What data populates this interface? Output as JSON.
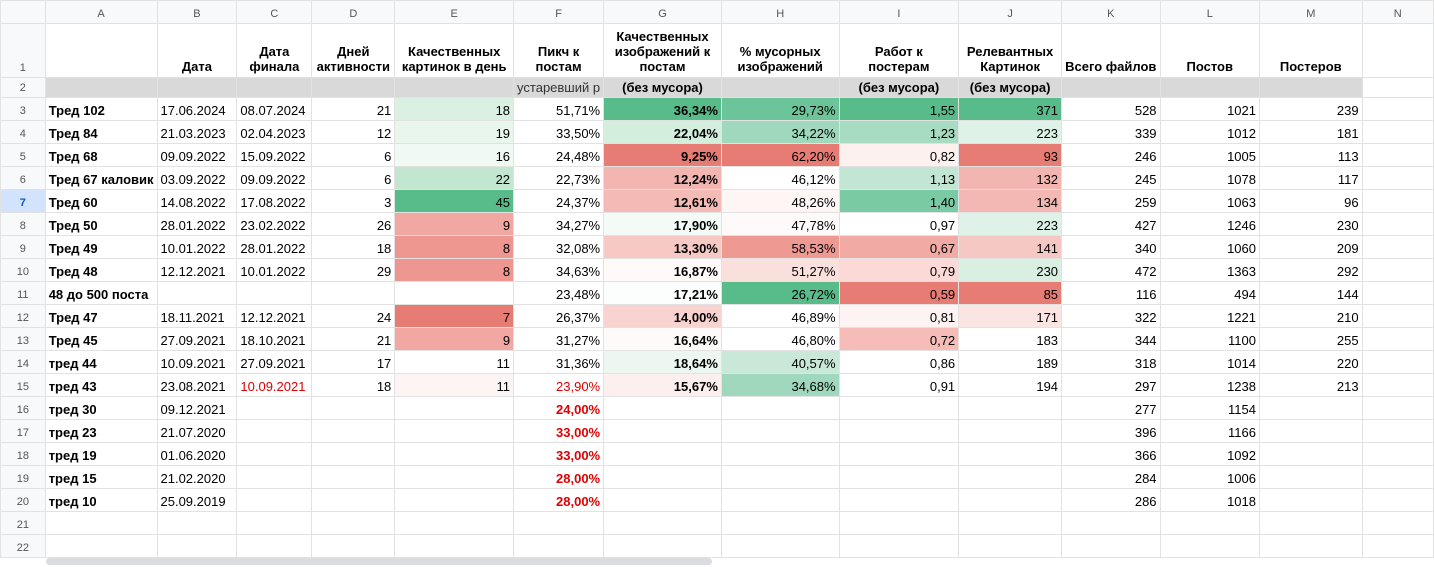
{
  "columns": [
    "A",
    "B",
    "C",
    "D",
    "E",
    "F",
    "G",
    "H",
    "I",
    "J",
    "K",
    "L",
    "M",
    "N"
  ],
  "header": {
    "row_num": "1",
    "B": "Дата",
    "C": "Дата финала",
    "D": "Дней активности",
    "E": "Качественных картинок в день",
    "F": "Пикч к постам",
    "G": "Качественных изображений к постам",
    "H": "% мусорных изображений",
    "I": "Работ к постерам",
    "J": "Релевантных Картинок",
    "K": "Всего файлов",
    "L": "Постов",
    "M": "Постеров"
  },
  "header2": {
    "row_num": "2",
    "F": "устаревший р",
    "G": "(без мусора)",
    "I": "(без мусора)",
    "J": "(без мусора)"
  },
  "rows": [
    {
      "n": "3",
      "a": "Тред 102",
      "b": "17.06.2024",
      "c": "08.07.2024",
      "d": "21",
      "e": "18",
      "f": "51,71%",
      "g": "36,34%",
      "h": "29,73%",
      "i": "1,55",
      "j": "371",
      "k": "528",
      "l": "1021",
      "m": "239"
    },
    {
      "n": "4",
      "a": "Тред 84",
      "b": "21.03.2023",
      "c": "02.04.2023",
      "d": "12",
      "e": "19",
      "f": "33,50%",
      "g": "22,04%",
      "h": "34,22%",
      "i": "1,23",
      "j": "223",
      "k": "339",
      "l": "1012",
      "m": "181"
    },
    {
      "n": "5",
      "a": "Тред 68",
      "b": "09.09.2022",
      "c": "15.09.2022",
      "d": "6",
      "e": "16",
      "f": "24,48%",
      "g": "9,25%",
      "h": "62,20%",
      "i": "0,82",
      "j": "93",
      "k": "246",
      "l": "1005",
      "m": "113"
    },
    {
      "n": "6",
      "a": "Тред 67 каловик",
      "b": "03.09.2022",
      "c": "09.09.2022",
      "d": "6",
      "e": "22",
      "f": "22,73%",
      "g": "12,24%",
      "h": "46,12%",
      "i": "1,13",
      "j": "132",
      "k": "245",
      "l": "1078",
      "m": "117"
    },
    {
      "n": "7",
      "a": "Тред 60",
      "b": "14.08.2022",
      "c": "17.08.2022",
      "d": "3",
      "e": "45",
      "f": "24,37%",
      "g": "12,61%",
      "h": "48,26%",
      "i": "1,40",
      "j": "134",
      "k": "259",
      "l": "1063",
      "m": "96"
    },
    {
      "n": "8",
      "a": "Тред 50",
      "b": "28.01.2022",
      "c": "23.02.2022",
      "d": "26",
      "e": "9",
      "f": "34,27%",
      "g": "17,90%",
      "h": "47,78%",
      "i": "0,97",
      "j": "223",
      "k": "427",
      "l": "1246",
      "m": "230"
    },
    {
      "n": "9",
      "a": "Тред 49",
      "b": "10.01.2022",
      "c": "28.01.2022",
      "d": "18",
      "e": "8",
      "f": "32,08%",
      "g": "13,30%",
      "h": "58,53%",
      "i": "0,67",
      "j": "141",
      "k": "340",
      "l": "1060",
      "m": "209"
    },
    {
      "n": "10",
      "a": "Тред 48",
      "b": "12.12.2021",
      "c": "10.01.2022",
      "d": "29",
      "e": "8",
      "f": "34,63%",
      "g": "16,87%",
      "h": "51,27%",
      "i": "0,79",
      "j": "230",
      "k": "472",
      "l": "1363",
      "m": "292"
    },
    {
      "n": "11",
      "a": "48 до 500 поста",
      "b": "",
      "c": "",
      "d": "",
      "e": "",
      "f": "23,48%",
      "g": "17,21%",
      "h": "26,72%",
      "i": "0,59",
      "j": "85",
      "k": "116",
      "l": "494",
      "m": "144"
    },
    {
      "n": "12",
      "a": "Тред 47",
      "b": "18.11.2021",
      "c": "12.12.2021",
      "d": "24",
      "e": "7",
      "f": "26,37%",
      "g": "14,00%",
      "h": "46,89%",
      "i": "0,81",
      "j": "171",
      "k": "322",
      "l": "1221",
      "m": "210"
    },
    {
      "n": "13",
      "a": "Тред 45",
      "b": "27.09.2021",
      "c": "18.10.2021",
      "d": "21",
      "e": "9",
      "f": "31,27%",
      "g": "16,64%",
      "h": "46,80%",
      "i": "0,72",
      "j": "183",
      "k": "344",
      "l": "1100",
      "m": "255"
    },
    {
      "n": "14",
      "a": "тред 44",
      "b": "10.09.2021",
      "c": "27.09.2021",
      "d": "17",
      "e": "11",
      "f": "31,36%",
      "g": "18,64%",
      "h": "40,57%",
      "i": "0,86",
      "j": "189",
      "k": "318",
      "l": "1014",
      "m": "220"
    },
    {
      "n": "15",
      "a": "тред 43",
      "b": "23.08.2021",
      "c": "10.09.2021",
      "d": "18",
      "e": "11",
      "f": "23,90%",
      "g": "15,67%",
      "h": "34,68%",
      "i": "0,91",
      "j": "194",
      "k": "297",
      "l": "1238",
      "m": "213"
    },
    {
      "n": "16",
      "a": "тред 30",
      "b": "09.12.2021",
      "c": "",
      "d": "",
      "e": "",
      "f": "24,00%",
      "g": "",
      "h": "",
      "i": "",
      "j": "",
      "k": "277",
      "l": "1154",
      "m": ""
    },
    {
      "n": "17",
      "a": "тред 23",
      "b": "21.07.2020",
      "c": "",
      "d": "",
      "e": "",
      "f": "33,00%",
      "g": "",
      "h": "",
      "i": "",
      "j": "",
      "k": "396",
      "l": "1166",
      "m": ""
    },
    {
      "n": "18",
      "a": "тред 19",
      "b": "01.06.2020",
      "c": "",
      "d": "",
      "e": "",
      "f": "33,00%",
      "g": "",
      "h": "",
      "i": "",
      "j": "",
      "k": "366",
      "l": "1092",
      "m": ""
    },
    {
      "n": "19",
      "a": "тред 15",
      "b": "21.02.2020",
      "c": "",
      "d": "",
      "e": "",
      "f": "28,00%",
      "g": "",
      "h": "",
      "i": "",
      "j": "",
      "k": "284",
      "l": "1006",
      "m": ""
    },
    {
      "n": "20",
      "a": "тред 10",
      "b": "25.09.2019",
      "c": "",
      "d": "",
      "e": "",
      "f": "28,00%",
      "g": "",
      "h": "",
      "i": "",
      "j": "",
      "k": "286",
      "l": "1018",
      "m": ""
    },
    {
      "n": "21",
      "a": "",
      "b": "",
      "c": "",
      "d": "",
      "e": "",
      "f": "",
      "g": "",
      "h": "",
      "i": "",
      "j": "",
      "k": "",
      "l": "",
      "m": ""
    },
    {
      "n": "22",
      "a": "",
      "b": "",
      "c": "",
      "d": "",
      "e": "",
      "f": "",
      "g": "",
      "h": "",
      "i": "",
      "j": "",
      "k": "",
      "l": "",
      "m": ""
    }
  ],
  "colors": {
    "E": [
      "#d9f0e2",
      "#e8f6ee",
      "#f0f9f3",
      "#c3e6d1",
      "#57bb8a",
      "#f1a8a3",
      "#ee9690",
      "#ee9690",
      null,
      "#e67c73",
      "#f1a8a3",
      "#ffffff",
      "#fdf5f4"
    ],
    "G": [
      "#57bb8a",
      "#d4eede",
      "#e67c73",
      "#f2b5b0",
      "#f4bbb6",
      "#f4fbf7",
      "#f6c9c5",
      "#fff9f8",
      "#fcfefd",
      "#f8d3d0",
      "#fefafa",
      "#ebf7f0",
      "#fcefee"
    ],
    "H": [
      "#6cc59a",
      "#9fd8bc",
      "#e67c73",
      "#ffffff",
      "#fef5f5",
      "#fefafa",
      "#ee9a93",
      "#fae0dd",
      "#57bb8a",
      "#ffffff",
      "#ffffff",
      "#c9e8d7",
      "#9fd8bc"
    ],
    "I": [
      "#57bb8a",
      "#a8dcc2",
      "#fdf1f0",
      "#c2e6d3",
      "#7acba3",
      "#ffffff",
      "#f2aaa5",
      "#fad9d6",
      "#e67c73",
      "#fdf3f2",
      "#f6bcb7",
      "#ffffff",
      "#ffffff"
    ],
    "J": [
      "#57bb8a",
      "#dff2e7",
      "#e67c73",
      "#f3b5b0",
      "#f4b8b4",
      "#dff2e7",
      "#f6c8c4",
      "#d8efe2",
      "#e67c73",
      "#fbe5e3",
      "#ffffff",
      "#ffffff",
      "#ffffff"
    ]
  },
  "styles": {
    "red_text": {
      "C": [
        12
      ]
    },
    "red_bold": {
      "F": [
        12,
        13,
        14,
        15,
        16,
        17
      ]
    },
    "red_normal_F": [
      12
    ]
  }
}
